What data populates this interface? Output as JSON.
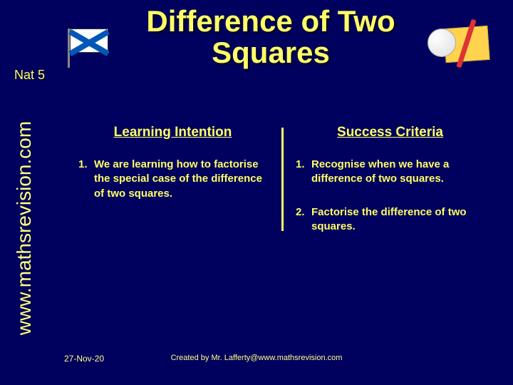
{
  "slide": {
    "title": "Difference of Two Squares",
    "level": "Nat 5",
    "sidebar": "www.mathsrevision.com",
    "columns": {
      "left": {
        "heading": "Learning Intention",
        "items": [
          {
            "num": "1.",
            "text": "We are learning how to factorise the special case of the difference of two squares."
          }
        ]
      },
      "right": {
        "heading": "Success Criteria",
        "items": [
          {
            "num": "1.",
            "text": "Recognise when we have a difference of two squares."
          },
          {
            "num": "2.",
            "text": "Factorise the difference of two squares."
          }
        ]
      }
    },
    "footer": {
      "date": "27-Nov-20",
      "credit": "Created by Mr. Lafferty@www.mathsrevision.com"
    }
  },
  "style": {
    "background_color": "#00005e",
    "text_color": "#ffff66",
    "title_fontsize": 42,
    "heading_fontsize": 19,
    "body_fontsize": 15,
    "sidebar_fontsize": 28,
    "footer_fontsize": 11,
    "font_family_title": "Comic Sans MS",
    "font_family_sidebar": "Arial",
    "divider_color": "#ffff66",
    "divider_width": 3
  }
}
